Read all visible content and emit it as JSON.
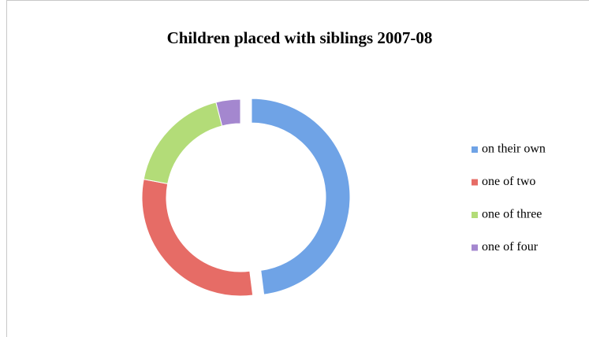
{
  "chart_data": {
    "type": "pie",
    "donut": true,
    "title": "Children placed with siblings 2007-08",
    "categories": [
      "on their own",
      "one of two",
      "one of three",
      "one of four"
    ],
    "values": [
      48,
      30,
      18,
      4
    ],
    "colors": [
      "#6fa3e6",
      "#e66c66",
      "#b3dc78",
      "#a487cf"
    ],
    "legend": "right"
  }
}
